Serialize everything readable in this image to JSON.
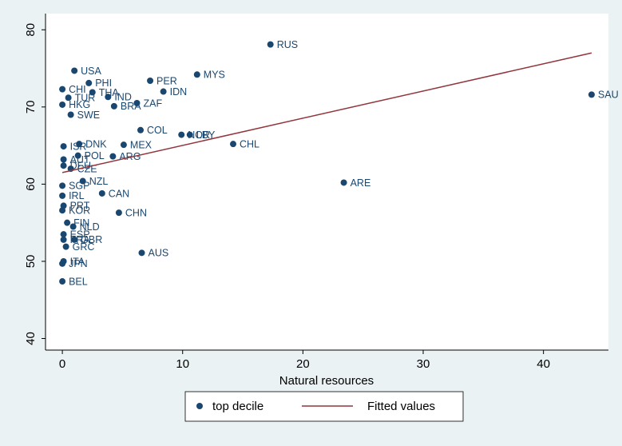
{
  "chart_data": {
    "type": "scatter",
    "xlabel": "Natural resources",
    "xlim": [
      -1.4,
      45.4
    ],
    "ylim": [
      38.5,
      82.1
    ],
    "xticks": [
      0,
      10,
      20,
      30,
      40
    ],
    "yticks": [
      40,
      50,
      60,
      70,
      80
    ],
    "grid": false,
    "series": [
      {
        "name": "top decile",
        "type": "scatter",
        "color": "#1a476f",
        "labels": [
          "RUS",
          "SAU",
          "MYS",
          "USA",
          "PHI",
          "PER",
          "CHI",
          "THA",
          "IDN",
          "TUR",
          "IND",
          "HKG",
          "BRA",
          "ZAF",
          "SWE",
          "COL",
          "NOR",
          "LBY",
          "CHL",
          "ISR",
          "DNK",
          "MEX",
          "POL",
          "ARG",
          "AUT",
          "DEU",
          "CZE",
          "ARE",
          "SGP",
          "NZL",
          "CAN",
          "IRL",
          "PRT",
          "KOR",
          "CHN",
          "FIN",
          "NLD",
          "ESP",
          "FRA",
          "GBR",
          "GRC",
          "AUS",
          "ITA",
          "JPN",
          "BEL"
        ],
        "x": [
          17.3,
          44.0,
          11.2,
          1.0,
          2.2,
          7.3,
          0.0,
          2.5,
          8.4,
          0.5,
          3.8,
          0.0,
          4.3,
          6.2,
          0.7,
          6.5,
          9.9,
          10.6,
          14.2,
          0.1,
          1.4,
          5.1,
          1.3,
          4.2,
          0.1,
          0.1,
          0.7,
          23.4,
          0.0,
          1.7,
          3.3,
          0.0,
          0.1,
          0.0,
          4.7,
          0.4,
          0.9,
          0.1,
          0.1,
          1.0,
          0.3,
          6.6,
          0.1,
          0.0,
          0.0
        ],
        "values": [
          78.1,
          71.6,
          74.2,
          74.7,
          73.1,
          73.4,
          72.3,
          71.9,
          72.0,
          71.2,
          71.3,
          70.3,
          70.1,
          70.5,
          69.0,
          67.0,
          66.4,
          66.4,
          65.2,
          64.9,
          65.2,
          65.1,
          63.7,
          63.6,
          63.2,
          62.4,
          62.0,
          60.2,
          59.8,
          60.4,
          58.8,
          58.5,
          57.2,
          56.6,
          56.3,
          55.0,
          54.5,
          53.5,
          52.8,
          52.8,
          51.9,
          51.1,
          50.0,
          49.7,
          47.4
        ]
      },
      {
        "name": "Fitted values",
        "type": "line",
        "color": "#90353b",
        "x": [
          0,
          44.0
        ],
        "values": [
          61.5,
          77.0
        ]
      }
    ]
  }
}
